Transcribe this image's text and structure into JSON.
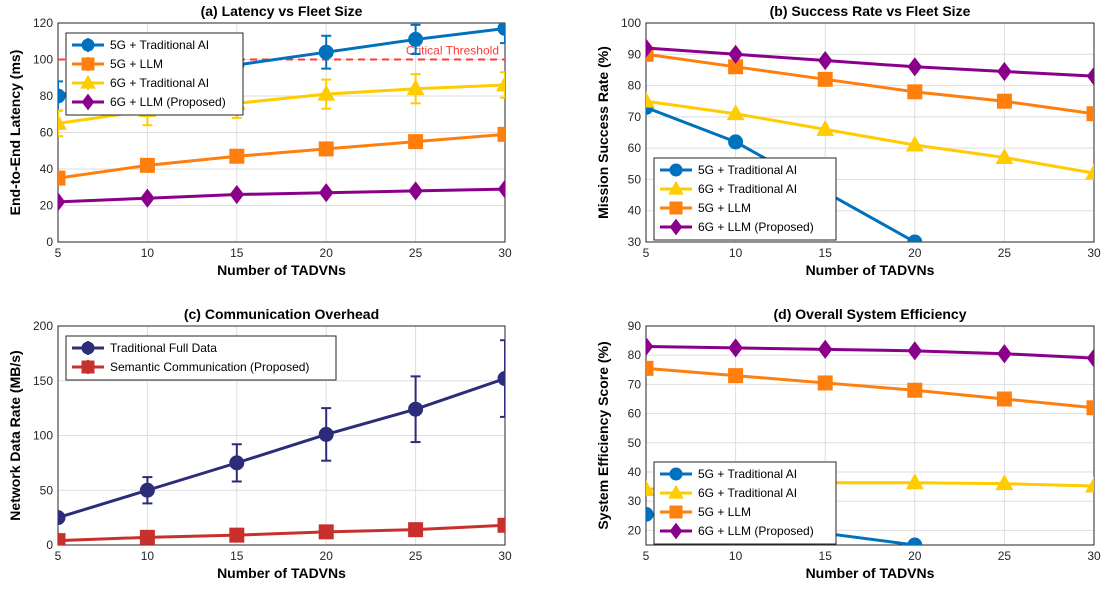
{
  "chart_data": [
    {
      "type": "line",
      "title": "(a) Latency vs Fleet Size",
      "xlabel": "Number of TADVNs",
      "ylabel": "End-to-End Latency (ms)",
      "x": [
        5,
        10,
        15,
        20,
        25,
        30
      ],
      "xlim": [
        5,
        30
      ],
      "ylim": [
        0,
        120
      ],
      "yticks": [
        0,
        20,
        40,
        60,
        80,
        100,
        120
      ],
      "grid": true,
      "legend_position": "top-left",
      "threshold": {
        "value": 100,
        "label": "Critical Threshold",
        "color": "#ff3b3b"
      },
      "series": [
        {
          "name": "5G + Traditional AI",
          "color": "#0072bd",
          "marker": "circle",
          "values": [
            80,
            95,
            97,
            104,
            111,
            117
          ],
          "errors": [
            8,
            10,
            10,
            9,
            8,
            8
          ]
        },
        {
          "name": "5G + LLM",
          "color": "#ff7f0e",
          "marker": "square",
          "values": [
            35,
            42,
            47,
            51,
            55,
            59
          ],
          "errors": [
            3,
            3,
            3,
            3,
            3,
            3
          ]
        },
        {
          "name": "6G + Traditional AI",
          "color": "#ffcc00",
          "marker": "triangle",
          "values": [
            65,
            72,
            76,
            81,
            84,
            86
          ],
          "errors": [
            7,
            8,
            8,
            8,
            8,
            7
          ]
        },
        {
          "name": "6G + LLM (Proposed)",
          "color": "#8b008b",
          "marker": "diamond",
          "values": [
            22,
            24,
            26,
            27,
            28,
            29
          ],
          "errors": [
            1,
            1,
            1,
            1,
            1,
            1
          ]
        }
      ]
    },
    {
      "type": "line",
      "title": "(b) Success Rate vs Fleet Size",
      "xlabel": "Number of TADVNs",
      "ylabel": "Mission Success Rate (%)",
      "x": [
        5,
        10,
        15,
        20,
        25,
        30
      ],
      "xlim": [
        5,
        30
      ],
      "ylim": [
        30,
        100
      ],
      "yticks": [
        30,
        40,
        50,
        60,
        70,
        80,
        90,
        100
      ],
      "grid": true,
      "legend_position": "bottom-left",
      "series": [
        {
          "name": "5G + Traditional AI",
          "color": "#0072bd",
          "marker": "circle",
          "values": [
            73,
            62,
            46,
            30,
            null,
            null
          ]
        },
        {
          "name": "6G + Traditional AI",
          "color": "#ffcc00",
          "marker": "triangle",
          "values": [
            75,
            71,
            66,
            61,
            57,
            52
          ]
        },
        {
          "name": "5G + LLM",
          "color": "#ff7f0e",
          "marker": "square",
          "values": [
            90,
            86,
            82,
            78,
            75,
            71
          ]
        },
        {
          "name": "6G + LLM (Proposed)",
          "color": "#8b008b",
          "marker": "diamond",
          "values": [
            92,
            90,
            88,
            86,
            84.5,
            83
          ]
        }
      ]
    },
    {
      "type": "line",
      "title": "(c) Communication Overhead",
      "xlabel": "Number of TADVNs",
      "ylabel": "Network Data Rate (MB/s)",
      "x": [
        5,
        10,
        15,
        20,
        25,
        30
      ],
      "xlim": [
        5,
        30
      ],
      "ylim": [
        0,
        200
      ],
      "yticks": [
        0,
        50,
        100,
        150,
        200
      ],
      "grid": true,
      "legend_position": "top-left",
      "series": [
        {
          "name": "Traditional Full Data",
          "color": "#2c2c7a",
          "marker": "circle",
          "values": [
            25,
            50,
            75,
            101,
            124,
            152
          ],
          "errors": [
            4,
            12,
            17,
            24,
            30,
            35
          ]
        },
        {
          "name": "Semantic Communication (Proposed)",
          "color": "#c8302e",
          "marker": "square",
          "values": [
            4,
            7,
            9,
            12,
            14,
            18
          ],
          "errors": [
            0.5,
            0.5,
            0.5,
            0.5,
            0.5,
            0.5
          ]
        }
      ]
    },
    {
      "type": "line",
      "title": "(d) Overall System Efficiency",
      "xlabel": "Number of TADVNs",
      "ylabel": "System Efficiency Score (%)",
      "x": [
        5,
        10,
        15,
        20,
        25,
        30
      ],
      "xlim": [
        5,
        30
      ],
      "ylim": [
        15,
        90
      ],
      "yticks": [
        20,
        30,
        40,
        50,
        60,
        70,
        80,
        90
      ],
      "grid": true,
      "legend_position": "bottom-left",
      "series": [
        {
          "name": "5G + Traditional AI",
          "color": "#0072bd",
          "marker": "circle",
          "values": [
            25.5,
            22,
            19,
            15,
            null,
            null
          ]
        },
        {
          "name": "6G + Traditional AI",
          "color": "#ffcc00",
          "marker": "triangle",
          "values": [
            34,
            36,
            36.3,
            36.3,
            36,
            35.2
          ]
        },
        {
          "name": "5G + LLM",
          "color": "#ff7f0e",
          "marker": "square",
          "values": [
            75.5,
            73,
            70.5,
            68,
            65,
            62
          ]
        },
        {
          "name": "6G + LLM (Proposed)",
          "color": "#8b008b",
          "marker": "diamond",
          "values": [
            83,
            82.5,
            82,
            81.5,
            80.5,
            79
          ]
        }
      ]
    }
  ]
}
